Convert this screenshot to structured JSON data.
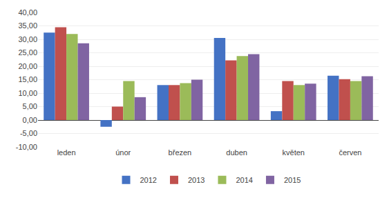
{
  "chart_data": {
    "type": "bar",
    "categories": [
      "leden",
      "únor",
      "březen",
      "duben",
      "květen",
      "červen"
    ],
    "series": [
      {
        "name": "2012",
        "color": "#4472C4",
        "values": [
          32.5,
          -2.5,
          13.0,
          30.5,
          3.3,
          16.5
        ]
      },
      {
        "name": "2013",
        "color": "#C0504D",
        "values": [
          34.5,
          5.0,
          13.0,
          22.2,
          14.5,
          15.2
        ]
      },
      {
        "name": "2014",
        "color": "#9BBB59",
        "values": [
          32.0,
          14.5,
          13.7,
          23.8,
          13.0,
          14.5
        ]
      },
      {
        "name": "2015",
        "color": "#8064A2",
        "values": [
          28.5,
          8.5,
          15.0,
          24.5,
          13.5,
          16.3
        ]
      }
    ],
    "ylim": [
      -10,
      40
    ],
    "yticks": [
      {
        "value": -10,
        "label": "-10,00"
      },
      {
        "value": -5,
        "label": "-5,00"
      },
      {
        "value": 0,
        "label": "0,00"
      },
      {
        "value": 5,
        "label": "5,00"
      },
      {
        "value": 10,
        "label": "10,00"
      },
      {
        "value": 15,
        "label": "15,00"
      },
      {
        "value": 20,
        "label": "20,00"
      },
      {
        "value": 25,
        "label": "25,00"
      },
      {
        "value": 30,
        "label": "30,00"
      },
      {
        "value": 35,
        "label": "35,00"
      },
      {
        "value": 40,
        "label": "40,00"
      }
    ],
    "grid": true,
    "legend": "bottom"
  }
}
